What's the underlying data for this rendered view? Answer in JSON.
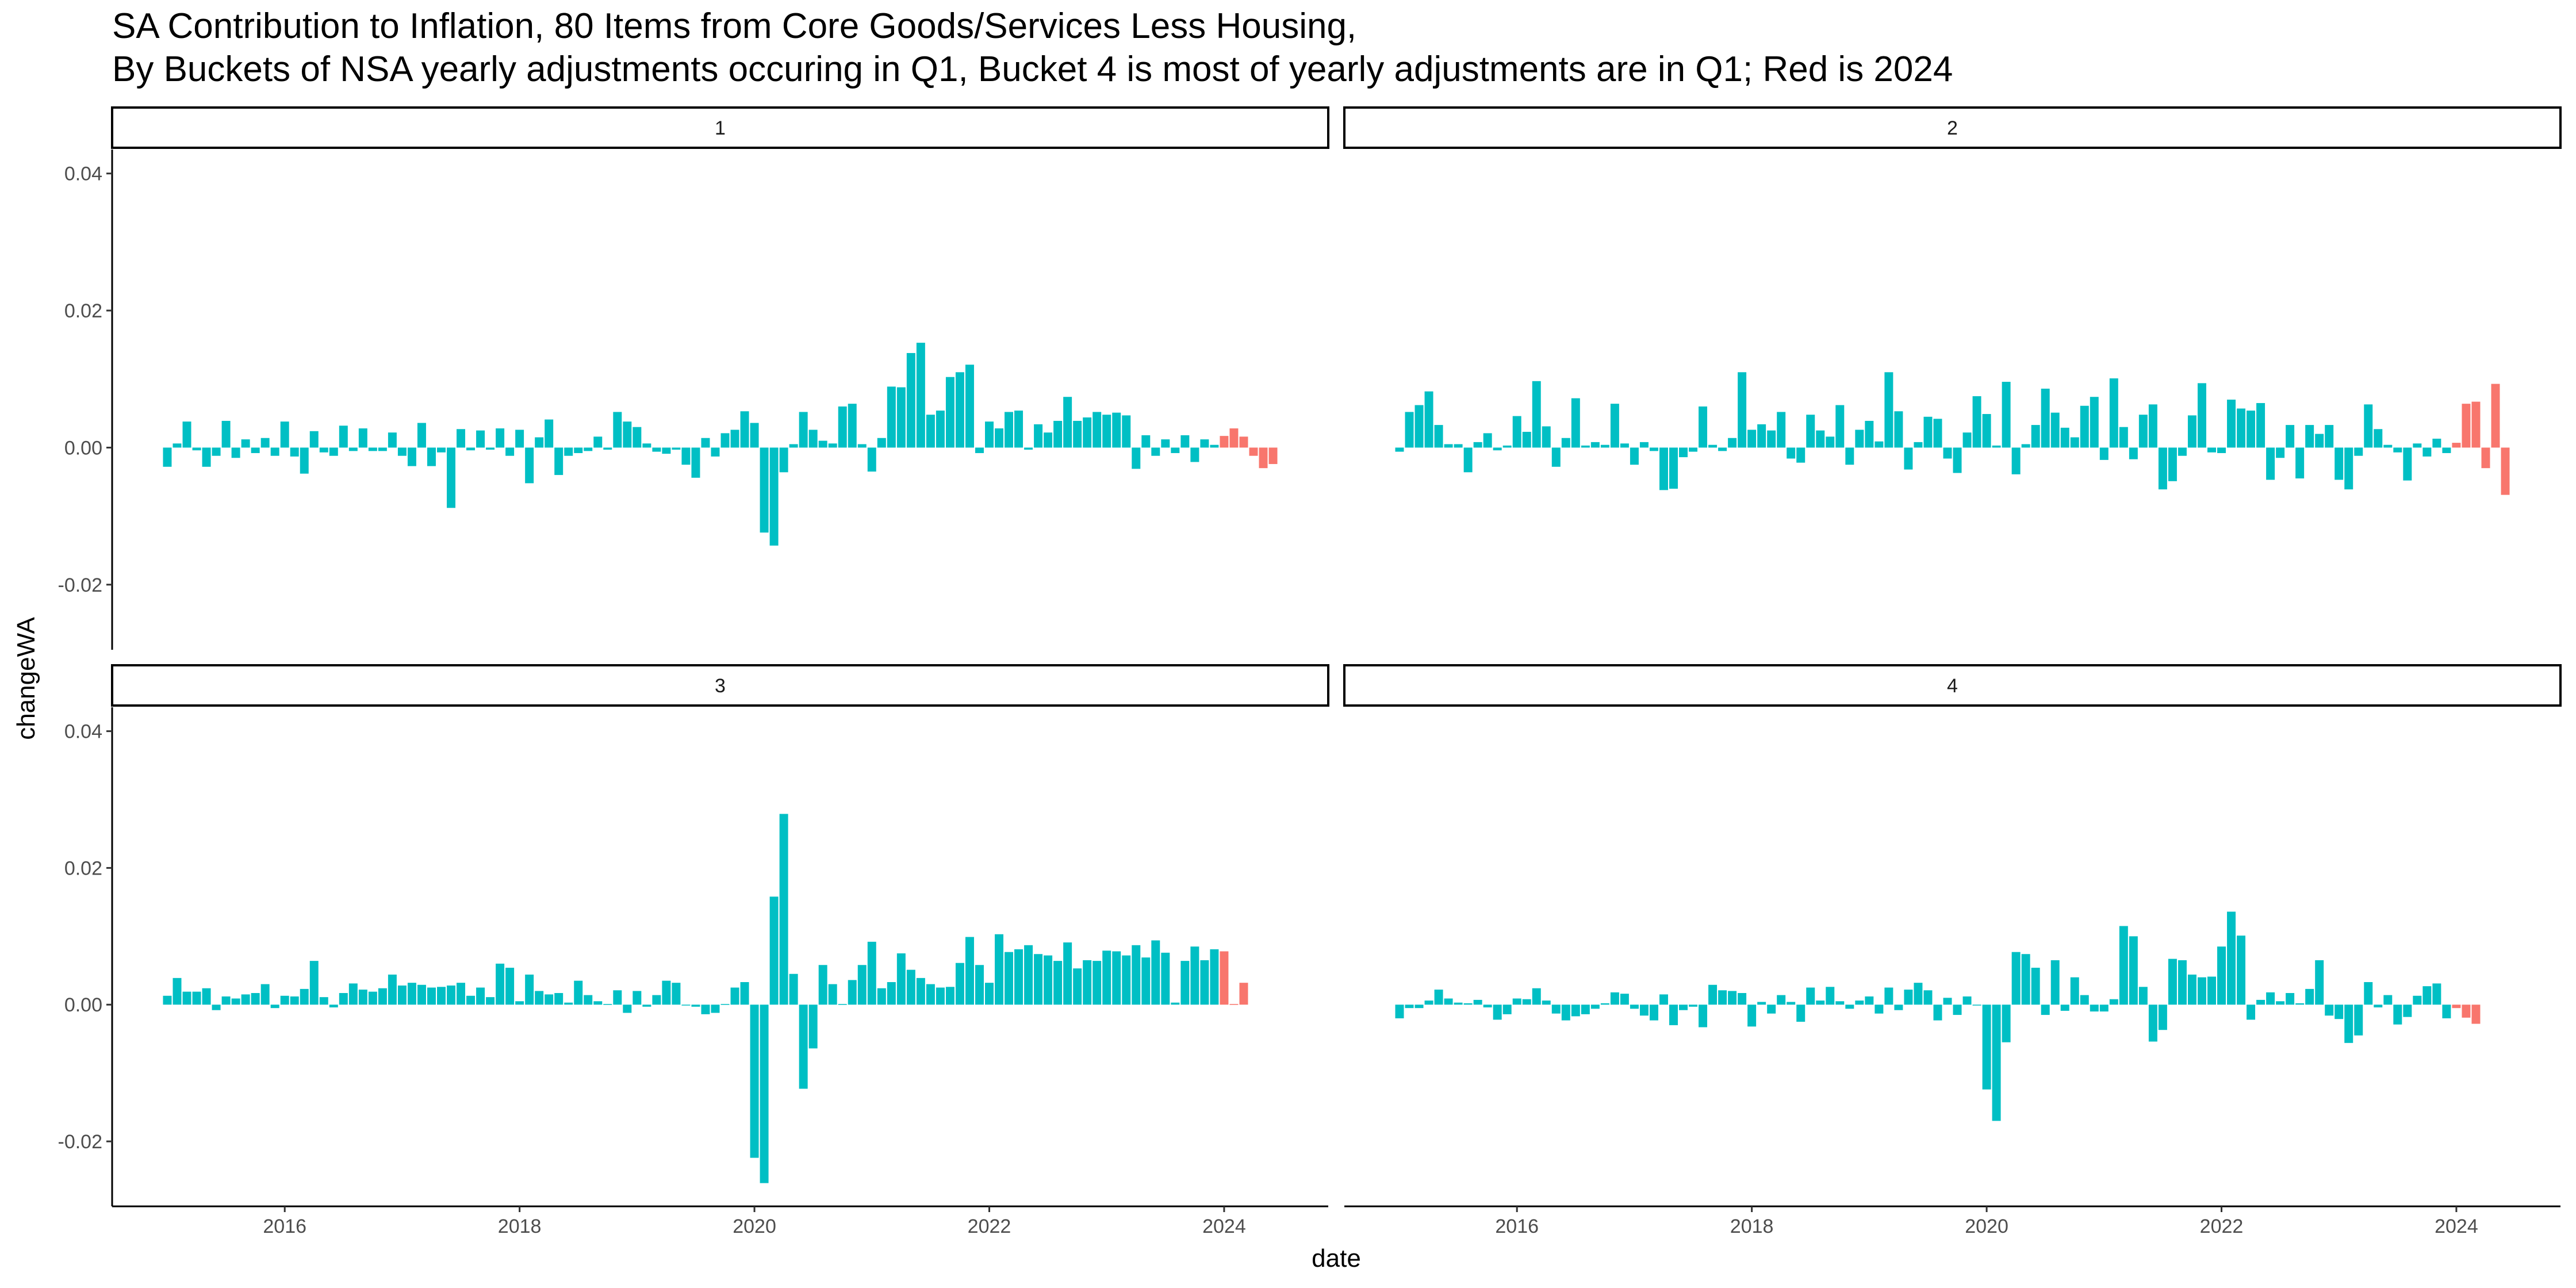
{
  "title": {
    "line1": "SA Contribution to Inflation, 80 Items from Core Goods/Services Less Housing,",
    "line2": "By Buckets of NSA yearly adjustments occuring in Q1, Bucket 4 is most of yearly adjustments are in Q1; Red is 2024"
  },
  "colors": {
    "pre2024": "#00BFC4",
    "year2024": "#F8766D"
  },
  "chart_data": {
    "type": "bar",
    "xlabel": "date",
    "ylabel": "changeWA",
    "x_start": "2015-01",
    "x_end": "2024-06",
    "x_ticks": [
      "2016",
      "2018",
      "2020",
      "2022",
      "2024"
    ],
    "y_ticks": [
      "-0.02",
      "0.00",
      "0.02",
      "0.04"
    ],
    "ylim": [
      -0.0295,
      0.0435
    ],
    "grid": false,
    "panels": [
      {
        "label": "1",
        "values": [
          -0.0028,
          0.0006,
          0.0038,
          -0.0004,
          -0.0028,
          -0.0012,
          0.0039,
          -0.0015,
          0.0012,
          -0.0008,
          0.0014,
          -0.0012,
          0.0038,
          -0.0013,
          -0.0038,
          0.0024,
          -0.0007,
          -0.0012,
          0.0032,
          -0.0005,
          0.0028,
          -0.0005,
          -0.0005,
          0.0022,
          -0.0012,
          -0.0027,
          0.0036,
          -0.0027,
          -0.0007,
          -0.0088,
          0.0027,
          -0.0004,
          0.0025,
          -0.0003,
          0.0028,
          -0.0012,
          0.0026,
          -0.0052,
          0.0015,
          0.0041,
          -0.004,
          -0.0012,
          -0.0008,
          -0.0005,
          0.0016,
          -0.0003,
          0.0052,
          0.0038,
          0.003,
          0.0006,
          -0.0006,
          -0.0009,
          -0.0003,
          -0.0025,
          -0.0044,
          0.0014,
          -0.0013,
          0.0021,
          0.0026,
          0.0053,
          0.0036,
          -0.0124,
          -0.0143,
          -0.0036,
          0.0005,
          0.0052,
          0.0026,
          0.001,
          0.0006,
          0.006,
          0.0064,
          0.0005,
          -0.0035,
          0.0014,
          0.0089,
          0.0088,
          0.0138,
          0.0153,
          0.0048,
          0.0054,
          0.0103,
          0.011,
          0.0121,
          -0.0008,
          0.0038,
          0.0028,
          0.0052,
          0.0054,
          -0.0003,
          0.0034,
          0.0022,
          0.0039,
          0.0074,
          0.0039,
          0.0044,
          0.0052,
          0.0048,
          0.0051,
          0.0047,
          -0.0031,
          0.0018,
          -0.0012,
          0.0012,
          -0.0008,
          0.0018,
          -0.0021,
          0.0012,
          0.0004,
          0.0017,
          0.0028,
          0.0016,
          -0.0012,
          -0.003,
          -0.0024
        ]
      },
      {
        "label": "2",
        "values": [
          -0.0006,
          0.0052,
          0.0062,
          0.0082,
          0.0033,
          0.0005,
          0.0005,
          -0.0036,
          0.0008,
          0.0021,
          -0.0004,
          0.0003,
          0.0046,
          0.0023,
          0.0097,
          0.0031,
          -0.0028,
          0.0014,
          0.0072,
          0.0003,
          0.0008,
          0.0004,
          0.0064,
          0.0006,
          -0.0025,
          0.0008,
          -0.0005,
          -0.0062,
          -0.006,
          -0.0014,
          -0.0006,
          0.006,
          0.0004,
          -0.0005,
          0.0014,
          0.011,
          0.0026,
          0.0034,
          0.0025,
          0.0052,
          -0.0016,
          -0.0022,
          0.0048,
          0.0025,
          0.0016,
          0.0062,
          -0.0025,
          0.0026,
          0.0039,
          0.0009,
          0.011,
          0.0053,
          -0.0032,
          0.0008,
          0.0045,
          0.0042,
          -0.0016,
          -0.0037,
          0.0022,
          0.0075,
          0.0049,
          0.0003,
          0.0096,
          -0.0039,
          0.0005,
          0.0033,
          0.0086,
          0.0051,
          0.0029,
          0.0015,
          0.0061,
          0.0074,
          -0.0018,
          0.0101,
          0.003,
          -0.0017,
          0.0048,
          0.0063,
          -0.0061,
          -0.0049,
          -0.0012,
          0.0047,
          0.0094,
          -0.0007,
          -0.0008,
          0.007,
          0.0057,
          0.0054,
          0.0065,
          -0.0047,
          -0.0015,
          0.0033,
          -0.0045,
          0.0033,
          0.002,
          0.0033,
          -0.0047,
          -0.0061,
          -0.0012,
          0.0063,
          0.0027,
          0.0004,
          -0.0007,
          -0.0048,
          0.0006,
          -0.0013,
          0.0013,
          -0.0008,
          0.0007,
          0.0064,
          0.0067,
          -0.003,
          0.0093,
          -0.0069
        ]
      },
      {
        "label": "3",
        "values": [
          0.0013,
          0.0039,
          0.0019,
          0.0019,
          0.0024,
          -0.0008,
          0.0012,
          0.0009,
          0.0015,
          0.0017,
          0.003,
          -0.0005,
          0.0013,
          0.0012,
          0.0023,
          0.0064,
          0.0011,
          -0.0004,
          0.0017,
          0.0031,
          0.0022,
          0.0019,
          0.0024,
          0.0044,
          0.0028,
          0.0032,
          0.0029,
          0.0025,
          0.0026,
          0.0028,
          0.0032,
          0.0013,
          0.0025,
          0.0011,
          0.006,
          0.0054,
          0.0005,
          0.0044,
          0.002,
          0.0015,
          0.0017,
          0.0003,
          0.0035,
          0.0014,
          0.0005,
          0.0001,
          0.0021,
          -0.0012,
          0.002,
          -0.0003,
          0.0014,
          0.0035,
          0.0032,
          0.0,
          -0.0003,
          -0.0014,
          -0.0012,
          0.0001,
          0.0025,
          0.0033,
          -0.0224,
          -0.0261,
          0.0158,
          0.0279,
          0.0045,
          -0.0123,
          -0.0064,
          0.0058,
          0.003,
          0.0001,
          0.0036,
          0.0058,
          0.0092,
          0.0024,
          0.0033,
          0.0075,
          0.0051,
          0.0039,
          0.003,
          0.0025,
          0.0026,
          0.0061,
          0.0099,
          0.0058,
          0.0032,
          0.0103,
          0.0077,
          0.0081,
          0.0087,
          0.0074,
          0.0072,
          0.0064,
          0.0091,
          0.0053,
          0.0065,
          0.0064,
          0.0079,
          0.0078,
          0.0072,
          0.0087,
          0.0069,
          0.0094,
          0.0076,
          0.0003,
          0.0064,
          0.0085,
          0.0065,
          0.0081,
          0.0078,
          0.0001,
          0.0032
        ]
      },
      {
        "label": "4",
        "values": [
          -0.002,
          -0.0005,
          -0.0005,
          0.0006,
          0.0022,
          0.0009,
          0.0003,
          0.0002,
          0.0007,
          -0.0004,
          -0.0022,
          -0.0014,
          0.0009,
          0.0008,
          0.0024,
          0.0006,
          -0.0013,
          -0.0023,
          -0.0017,
          -0.0014,
          -0.0006,
          0.0002,
          0.0018,
          0.0016,
          -0.0006,
          -0.0016,
          -0.0023,
          0.0015,
          -0.003,
          -0.0008,
          -0.0003,
          -0.0033,
          0.0029,
          0.0021,
          0.002,
          0.0017,
          -0.0032,
          0.0004,
          -0.0013,
          0.0014,
          0.0004,
          -0.0025,
          0.0025,
          0.0006,
          0.0026,
          0.0005,
          -0.0006,
          0.0006,
          0.0012,
          -0.0013,
          0.0025,
          -0.0008,
          0.0022,
          0.0032,
          0.0021,
          -0.0023,
          0.001,
          -0.0015,
          0.0012,
          0.0,
          -0.0124,
          -0.017,
          -0.0055,
          0.0077,
          0.0074,
          0.0054,
          -0.0015,
          0.0065,
          -0.0009,
          0.004,
          0.0014,
          -0.001,
          -0.001,
          0.0008,
          0.0115,
          0.01,
          0.0026,
          -0.0054,
          -0.0037,
          0.0067,
          0.0065,
          0.0044,
          0.004,
          0.0041,
          0.0085,
          0.0136,
          0.0101,
          -0.0022,
          0.0007,
          0.0018,
          0.0005,
          0.0017,
          0.0002,
          0.0023,
          0.0065,
          -0.0016,
          -0.0021,
          -0.0056,
          -0.0045,
          0.0033,
          -0.0004,
          0.0014,
          -0.0029,
          -0.0018,
          0.0013,
          0.0027,
          0.0031,
          -0.002,
          -0.0005,
          -0.0019,
          -0.0028
        ]
      }
    ]
  }
}
